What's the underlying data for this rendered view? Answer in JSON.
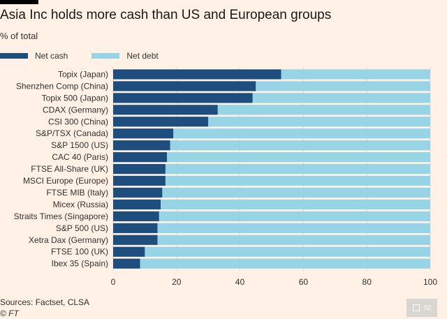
{
  "header": {
    "title": "Asia Inc holds more cash than US and European groups",
    "subtitle": "% of total"
  },
  "colors": {
    "net_cash": "#1d4e7d",
    "net_debt": "#96d4e6",
    "background": "#fff1e5",
    "grid": "#e4d9ce"
  },
  "footer": {
    "source": "Sources: Factset, CLSA",
    "credit": "© FT",
    "badge": "02",
    "badge_icon": "image-icon"
  },
  "chart_data": {
    "type": "bar",
    "orientation": "horizontal",
    "stacked": true,
    "categories": [
      "Topix (Japan)",
      "Shenzhen Comp (China)",
      "Topix 500 (Japan)",
      "CDAX (Germany)",
      "CSI 300 (China)",
      "S&P/TSX (Canada)",
      "S&P 1500 (US)",
      "CAC 40 (Paris)",
      "FTSE All-Share (UK)",
      "MSCI Europe (Europe)",
      "FTSE MIB (Italy)",
      "Micex (Russia)",
      "Straits Times (Singapore)",
      "S&P 500 (US)",
      "Xetra Dax (Germany)",
      "FTSE 100 (UK)",
      "Ibex 35 (Spain)"
    ],
    "series": [
      {
        "name": "Net cash",
        "values": [
          53,
          45,
          44,
          33,
          30,
          19,
          18,
          17,
          16.5,
          16.5,
          15.5,
          15,
          14.5,
          14,
          14,
          10,
          8.5
        ]
      },
      {
        "name": "Net debt",
        "values": [
          47,
          55,
          56,
          67,
          70,
          81,
          82,
          83,
          83.5,
          83.5,
          84.5,
          85,
          85.5,
          86,
          86,
          90,
          91.5
        ]
      }
    ],
    "xlim": [
      0,
      100
    ],
    "xticks": [
      0,
      20,
      40,
      60,
      80,
      100
    ],
    "grid": true,
    "legend_position": "top-left"
  }
}
